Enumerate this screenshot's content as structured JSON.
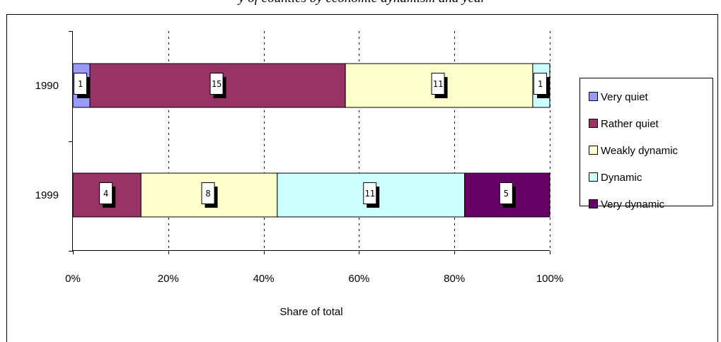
{
  "chart_data": {
    "type": "bar",
    "orientation": "horizontal",
    "stacking": "percent",
    "title": "y of counties by economic dynamism and year",
    "xlabel": "Share of total",
    "ylabel": "",
    "categories": [
      "1990",
      "1999"
    ],
    "xlim": [
      0,
      100
    ],
    "x_ticks": [
      "0%",
      "20%",
      "40%",
      "60%",
      "80%",
      "100%"
    ],
    "grid": "vertical dashed",
    "legend_position": "right",
    "series": [
      {
        "name": "Very quiet",
        "color": "#9999ff",
        "values": [
          1,
          0
        ]
      },
      {
        "name": "Rather quiet",
        "color": "#993366",
        "values": [
          15,
          4
        ]
      },
      {
        "name": "Weakly dynamic",
        "color": "#ffffcc",
        "values": [
          11,
          8
        ]
      },
      {
        "name": "Dynamic",
        "color": "#ccffff",
        "values": [
          1,
          11
        ]
      },
      {
        "name": "Very dynamic",
        "color": "#660066",
        "values": [
          0,
          5
        ]
      }
    ]
  }
}
